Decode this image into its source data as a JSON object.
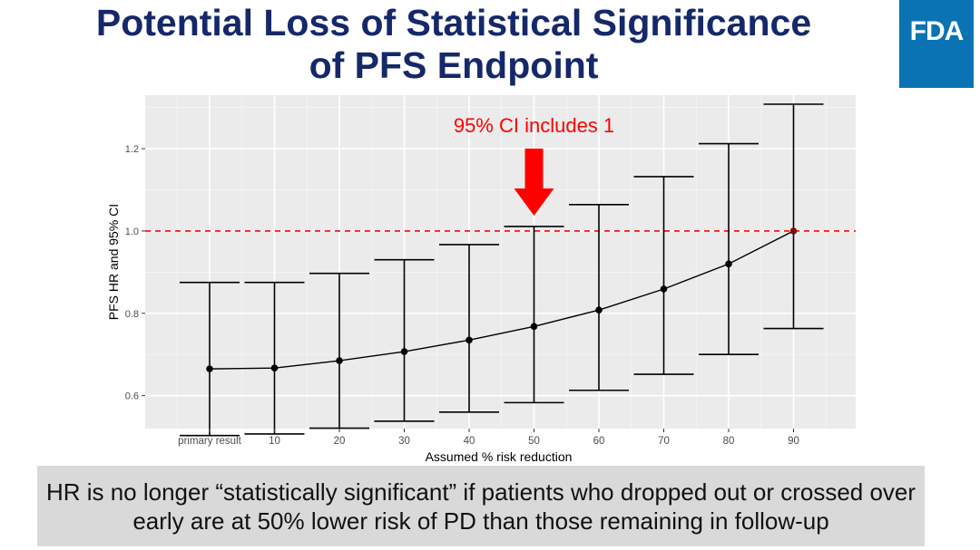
{
  "slide": {
    "title_line1": "Potential Loss of Statistical Significance",
    "title_line2": "of PFS Endpoint",
    "logo_text": "FDA",
    "caption": "HR is no longer “statistically significant” if patients who dropped out or crossed over early are at 50% lower risk of PD than those remaining in follow-up"
  },
  "colors": {
    "title": "#15286a",
    "logo_bg": "#0a73b4",
    "panel_bg": "#ebebeb",
    "reference_line": "#ff0000",
    "annotation": "#ff0000",
    "caption_bg": "#d9d9d9"
  },
  "chart_data": {
    "type": "errorbar-line",
    "xlabel": "Assumed % risk reduction",
    "ylabel": "PFS HR and 95% CI",
    "categories": [
      "primary result",
      "10",
      "20",
      "30",
      "40",
      "50",
      "60",
      "70",
      "80",
      "90"
    ],
    "hr": [
      0.665,
      0.667,
      0.685,
      0.707,
      0.735,
      0.768,
      0.808,
      0.859,
      0.92,
      1.0
    ],
    "ci_lower": [
      0.503,
      0.507,
      0.521,
      0.538,
      0.56,
      0.583,
      0.613,
      0.652,
      0.7,
      0.763
    ],
    "ci_upper": [
      0.875,
      0.875,
      0.897,
      0.93,
      0.967,
      1.011,
      1.064,
      1.132,
      1.212,
      1.308
    ],
    "ylim": [
      0.52,
      1.33
    ],
    "yticks": [
      0.6,
      0.8,
      1.0,
      1.2
    ],
    "ytick_labels": [
      "0.6",
      "0.8",
      "1.0",
      "1.2"
    ],
    "reference_line": 1.0,
    "annotation": {
      "text": "95% CI includes 1",
      "category_index": 5
    },
    "grid": true
  }
}
